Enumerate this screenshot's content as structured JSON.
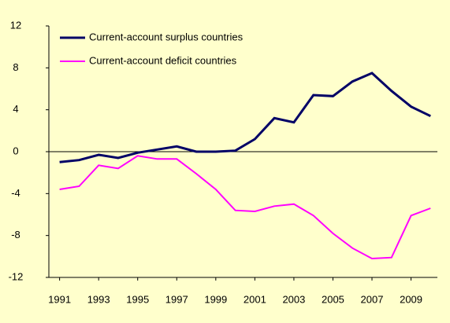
{
  "chart_data": {
    "type": "line",
    "x": [
      1991,
      1992,
      1993,
      1994,
      1995,
      1996,
      1997,
      1998,
      1999,
      2000,
      2001,
      2002,
      2003,
      2004,
      2005,
      2006,
      2007,
      2008,
      2009,
      2010
    ],
    "series": [
      {
        "name": "Current-account surplus countries",
        "color": "#000066",
        "values": [
          -1.0,
          -0.8,
          -0.3,
          -0.6,
          -0.1,
          0.2,
          0.5,
          0.0,
          0.0,
          0.1,
          1.2,
          3.2,
          2.8,
          5.4,
          5.3,
          6.7,
          7.5,
          5.8,
          4.3,
          3.4
        ]
      },
      {
        "name": "Current-account deficit countries",
        "color": "#ff00ff",
        "values": [
          -3.6,
          -3.3,
          -1.3,
          -1.6,
          -0.4,
          -0.7,
          -0.7,
          -2.1,
          -3.6,
          -5.6,
          -5.7,
          -5.2,
          -5.0,
          -6.1,
          -7.8,
          -9.2,
          -10.2,
          -10.1,
          -6.1,
          -5.4
        ]
      }
    ],
    "xlim": [
      1990.45,
      2010.35
    ],
    "xticks": [
      1991,
      1993,
      1995,
      1997,
      1999,
      2001,
      2003,
      2005,
      2007,
      2009
    ],
    "ylim": [
      -12,
      12
    ],
    "yticks": [
      12,
      8,
      4,
      0,
      -4,
      -8,
      -12
    ],
    "legend": "upper left"
  }
}
